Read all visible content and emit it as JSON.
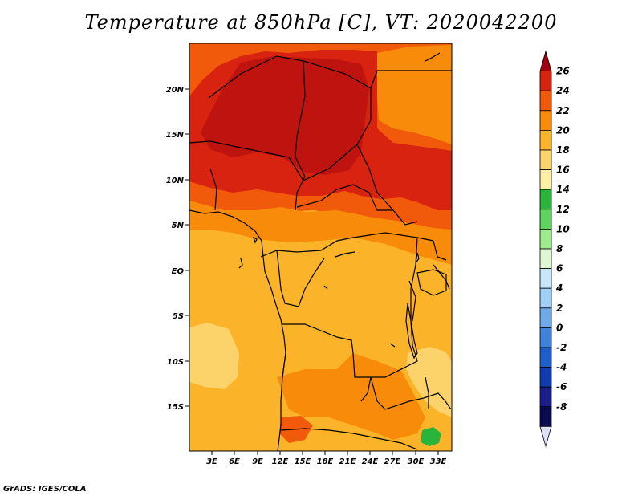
{
  "title": "Temperature at 850hPa [C], VT: 2020042200",
  "credit": "GrADS: IGES/COLA",
  "map": {
    "lat_labels": [
      "20N",
      "15N",
      "10N",
      "5N",
      "EQ",
      "5S",
      "10S",
      "15S"
    ],
    "lon_labels": [
      "3E",
      "6E",
      "9E",
      "12E",
      "15E",
      "18E",
      "21E",
      "24E",
      "27E",
      "30E",
      "33E"
    ]
  },
  "colorbar": {
    "labels": [
      "26",
      "24",
      "22",
      "20",
      "18",
      "16",
      "14",
      "12",
      "10",
      "8",
      "6",
      "4",
      "2",
      "0",
      "-2",
      "-4",
      "-6",
      "-8"
    ],
    "colors": [
      "#a0000f",
      "#d7230f",
      "#f05a0a",
      "#f88c0a",
      "#fbb42a",
      "#fcd36a",
      "#fdefa3",
      "#2bb43b",
      "#5fd35f",
      "#9deb8c",
      "#dcf7d2",
      "#c8e6fa",
      "#a0d0f5",
      "#6eaae9",
      "#4182dc",
      "#1f5fcc",
      "#0f3cb0",
      "#1a1e8a",
      "#0a0a50",
      "#e0e0f8"
    ]
  }
}
